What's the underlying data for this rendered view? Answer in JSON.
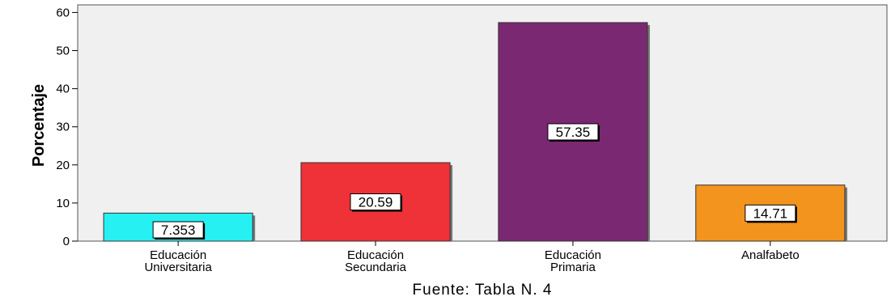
{
  "chart_data": {
    "type": "bar",
    "categories": [
      [
        "Educación",
        "Universitaria"
      ],
      [
        "Educación",
        "Secundaria"
      ],
      [
        "Educación",
        "Primaria"
      ],
      [
        "Analfabeto"
      ]
    ],
    "values": [
      7.353,
      20.59,
      57.35,
      14.71
    ],
    "data_labels": [
      "7.353",
      "20.59",
      "57.35",
      "14.71"
    ],
    "colors": [
      "#27f0f2",
      "#ee3238",
      "#7b2873",
      "#f3941f"
    ],
    "ylabel": "Porcentaje",
    "xlabel": "Fuente: Tabla N. 4",
    "ylim": [
      0,
      62
    ],
    "yticks": [
      0,
      10,
      20,
      30,
      40,
      50,
      60
    ],
    "grid": false,
    "plot_background": "#f0f0f0"
  }
}
